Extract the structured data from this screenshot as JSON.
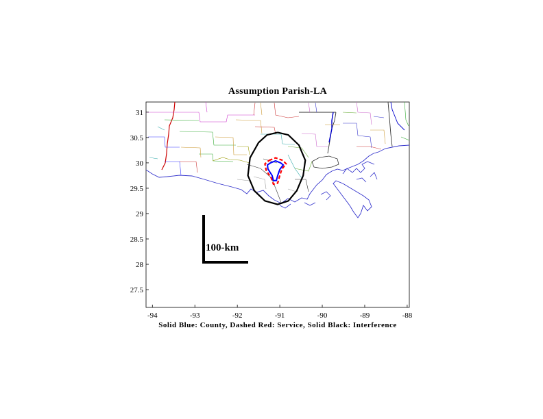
{
  "title": "Assumption Parish-LA",
  "caption": "Solid Blue: County, Dashed Red: Service, Solid Black: Interference",
  "scale_bar_label": "100-km",
  "chart_data": {
    "type": "map",
    "xlim": [
      -94.15,
      -87.95
    ],
    "ylim": [
      27.15,
      31.2
    ],
    "x_ticks": [
      -94,
      -93,
      -92,
      -91,
      -90,
      -89,
      -88
    ],
    "x_tick_labels": [
      "-94",
      "-93",
      "-92",
      "-91",
      "-90",
      "-89",
      "-88"
    ],
    "y_ticks": [
      27.5,
      28,
      28.5,
      29,
      29.5,
      30,
      30.5,
      31
    ],
    "y_tick_labels": [
      "27.5",
      "28",
      "28.5",
      "29",
      "29.5",
      "30",
      "30.5",
      "31"
    ],
    "colors": {
      "county": "#0000ff",
      "service": "#ff0000",
      "interference": "#000000"
    },
    "interference_contour": [
      [
        -91.05,
        30.6
      ],
      [
        -90.8,
        30.55
      ],
      [
        -90.55,
        30.35
      ],
      [
        -90.4,
        30.05
      ],
      [
        -90.45,
        29.75
      ],
      [
        -90.6,
        29.45
      ],
      [
        -90.8,
        29.25
      ],
      [
        -91.05,
        29.18
      ],
      [
        -91.35,
        29.25
      ],
      [
        -91.6,
        29.45
      ],
      [
        -91.75,
        29.75
      ],
      [
        -91.7,
        30.1
      ],
      [
        -91.5,
        30.4
      ],
      [
        -91.3,
        30.55
      ],
      [
        -91.05,
        30.6
      ]
    ],
    "service_contour": [
      [
        -91.25,
        30.05
      ],
      [
        -91.1,
        30.1
      ],
      [
        -90.93,
        30.05
      ],
      [
        -90.85,
        29.98
      ],
      [
        -90.95,
        29.88
      ],
      [
        -91.0,
        29.75
      ],
      [
        -91.05,
        29.6
      ],
      [
        -91.15,
        29.58
      ],
      [
        -91.2,
        29.7
      ],
      [
        -91.32,
        29.85
      ],
      [
        -91.35,
        29.98
      ],
      [
        -91.25,
        30.05
      ]
    ],
    "county_outline": [
      [
        -91.22,
        30.0
      ],
      [
        -91.1,
        30.04
      ],
      [
        -90.98,
        30.0
      ],
      [
        -90.92,
        29.96
      ],
      [
        -91.0,
        29.87
      ],
      [
        -91.05,
        29.75
      ],
      [
        -91.08,
        29.65
      ],
      [
        -91.15,
        29.65
      ],
      [
        -91.18,
        29.75
      ],
      [
        -91.28,
        29.88
      ],
      [
        -91.29,
        29.96
      ],
      [
        -91.22,
        30.0
      ]
    ]
  }
}
